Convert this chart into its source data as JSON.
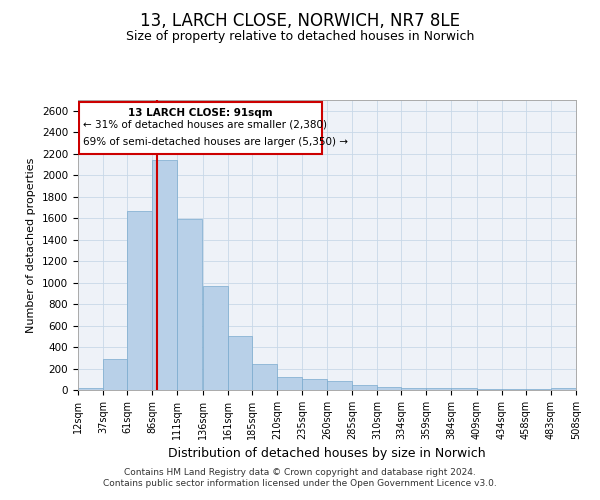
{
  "title": "13, LARCH CLOSE, NORWICH, NR7 8LE",
  "subtitle": "Size of property relative to detached houses in Norwich",
  "xlabel": "Distribution of detached houses by size in Norwich",
  "ylabel": "Number of detached properties",
  "footer_line1": "Contains HM Land Registry data © Crown copyright and database right 2024.",
  "footer_line2": "Contains public sector information licensed under the Open Government Licence v3.0.",
  "bar_color": "#b8d0e8",
  "bar_edge_color": "#7aaace",
  "grid_color": "#c8d8e8",
  "annotation_box_color": "#cc0000",
  "vline_color": "#cc0000",
  "vline_x": 91,
  "annotation_title": "13 LARCH CLOSE: 91sqm",
  "annotation_line1": "← 31% of detached houses are smaller (2,380)",
  "annotation_line2": "69% of semi-detached houses are larger (5,350) →",
  "bin_edges": [
    12,
    37,
    61,
    86,
    111,
    136,
    161,
    185,
    210,
    235,
    260,
    285,
    310,
    334,
    359,
    384,
    409,
    434,
    458,
    483,
    508
  ],
  "bar_heights": [
    20,
    290,
    1670,
    2140,
    1590,
    970,
    500,
    245,
    120,
    100,
    80,
    45,
    30,
    22,
    18,
    15,
    10,
    8,
    5,
    15
  ],
  "ylim": [
    0,
    2700
  ],
  "yticks": [
    0,
    200,
    400,
    600,
    800,
    1000,
    1200,
    1400,
    1600,
    1800,
    2000,
    2200,
    2400,
    2600
  ],
  "bg_color": "#eef2f8",
  "title_fontsize": 12,
  "subtitle_fontsize": 9,
  "xlabel_fontsize": 9,
  "ylabel_fontsize": 8
}
